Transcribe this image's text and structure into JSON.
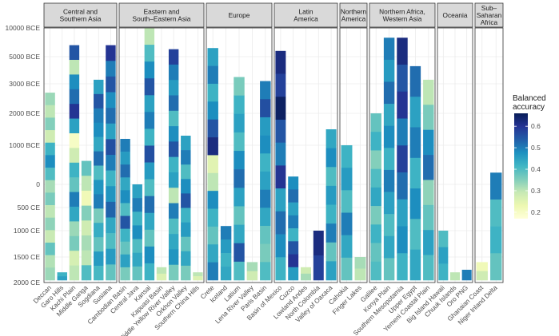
{
  "chart_data": {
    "type": "heatmap",
    "ylabel": "",
    "xlabel": "",
    "y_ticks": [
      "10000 BCE",
      "5000 BCE",
      "3000 BCE",
      "2000 BCE",
      "1000 BCE",
      "0",
      "500 CE",
      "1000 CE",
      "1500 CE",
      "2000 CE"
    ],
    "legend": {
      "title": [
        "Balanced",
        "accuracy"
      ],
      "ticks": [
        0.2,
        0.3,
        0.4,
        0.5,
        0.6
      ],
      "range": [
        0.17,
        0.66
      ],
      "placement": "right"
    },
    "colors": [
      "#ffffd9",
      "#edf8b1",
      "#c7e9b4",
      "#7fcdbb",
      "#41b6c4",
      "#1d91c0",
      "#225ea8",
      "#253494",
      "#081d58"
    ],
    "panels": [
      {
        "title": [
          "Central and",
          "Southern Asia"
        ],
        "regions": [
          "Deccan",
          "Garo Hills",
          "Kachi Plain",
          "Middle Ganga",
          "Sogdiana",
          "Susiana"
        ],
        "columns": [
          {
            "start": "2700 BCE",
            "values": [
              0.33,
              0.3,
              0.35,
              0.28,
              0.42,
              0.48,
              0.4,
              0.32,
              0.36,
              0.3,
              0.34,
              0.29,
              0.38,
              0.31,
              0.33
            ]
          },
          {
            "start": "1800 CE",
            "values": [
              0.42,
              0.45
            ]
          },
          {
            "start": "7000 BCE",
            "values": [
              0.55,
              0.3,
              0.48,
              0.52,
              0.6,
              0.45,
              0.2,
              0.28,
              0.42,
              0.38,
              0.5,
              0.44,
              0.33,
              0.36,
              0.27,
              0.3
            ]
          },
          {
            "start": "600 BCE",
            "values": [
              0.38,
              0.3,
              0.22,
              0.35,
              0.28,
              0.32,
              0.3,
              0.4
            ]
          },
          {
            "start": "3300 BCE",
            "values": [
              0.45,
              0.55,
              0.5,
              0.48,
              0.44,
              0.52,
              0.4,
              0.47,
              0.5,
              0.36,
              0.43,
              0.38,
              0.46,
              0.41
            ]
          },
          {
            "start": "7000 BCE",
            "values": [
              0.6,
              0.5,
              0.55,
              0.48,
              0.52,
              0.45,
              0.56,
              0.5,
              0.42,
              0.47,
              0.53,
              0.44,
              0.4,
              0.46,
              0.38
            ]
          }
        ]
      },
      {
        "title": [
          "Eastern and",
          "South–Eastern Asia"
        ],
        "regions": [
          "Cambodian Basin",
          "Central Java",
          "Kansai",
          "Kapuasi Basin",
          "Middle Yellow River Valley",
          "Orkhon Valley",
          "Southern China Hills"
        ],
        "columns": [
          {
            "start": "1200 BCE",
            "values": [
              0.5,
              0.46,
              0.52,
              0.44,
              0.48,
              0.4,
              0.55,
              0.42,
              0.38,
              0.45,
              0.36
            ]
          },
          {
            "start": "0",
            "values": [
              0.45,
              0.5,
              0.42,
              0.48,
              0.4,
              0.44,
              0.38
            ]
          },
          {
            "start": "10000 BCE",
            "values": [
              0.3,
              0.4,
              0.48,
              0.55,
              0.45,
              0.5,
              0.42,
              0.56,
              0.46,
              0.4,
              0.52,
              0.44,
              0.38,
              0.48,
              0.42
            ]
          },
          {
            "start": "1700 CE",
            "values": [
              0.3,
              0.26
            ]
          },
          {
            "start": "6300 BCE",
            "values": [
              0.58,
              0.5,
              0.46,
              0.52,
              0.4,
              0.48,
              0.55,
              0.42,
              0.45,
              0.3,
              0.5,
              0.4,
              0.44,
              0.47,
              0.36
            ]
          },
          {
            "start": "1300 BCE",
            "values": [
              0.45,
              0.5,
              0.4,
              0.48,
              0.55,
              0.42,
              0.46,
              0.38,
              0.44,
              0.36
            ]
          },
          {
            "start": "1800 CE",
            "values": [
              0.3,
              0.26
            ]
          }
        ]
      },
      {
        "title": [
          "Europe"
        ],
        "regions": [
          "Crete",
          "Iceland",
          "Latium",
          "Lena River Valley",
          "Paris Basin"
        ],
        "columns": [
          {
            "start": "6500 BCE",
            "values": [
              0.45,
              0.5,
              0.42,
              0.48,
              0.55,
              0.62,
              0.25,
              0.3,
              0.48,
              0.42,
              0.38,
              0.44,
              0.5
            ]
          },
          {
            "start": "900 CE",
            "values": [
              0.5,
              0.46,
              0.42,
              0.44
            ]
          },
          {
            "start": "3500 BCE",
            "values": [
              0.36,
              0.42,
              0.45,
              0.4,
              0.48,
              0.52,
              0.45,
              0.38,
              0.44,
              0.55,
              0.4
            ]
          },
          {
            "start": "1600 CE",
            "values": [
              0.32,
              0.28
            ]
          },
          {
            "start": "3200 BCE",
            "values": [
              0.5,
              0.56,
              0.46,
              0.48,
              0.42,
              0.45,
              0.5,
              0.44,
              0.38,
              0.36,
              0.4
            ]
          }
        ]
      },
      {
        "title": [
          "Latin",
          "America"
        ],
        "regions": [
          "Basin of Mexico",
          "Cuzco",
          "Lowland Andes",
          "North Colombia",
          "Valley of Oaxaca"
        ],
        "columns": [
          {
            "start": "6000 BCE",
            "values": [
              0.62,
              0.58,
              0.65,
              0.55,
              0.5,
              0.6,
              0.45,
              0.52,
              0.48,
              0.42
            ]
          },
          {
            "start": "200 BCE",
            "values": [
              0.48,
              0.52,
              0.45,
              0.5,
              0.42,
              0.55,
              0.6,
              0.46
            ]
          },
          {
            "start": "1700 CE",
            "values": [
              0.28,
              0.32
            ]
          },
          {
            "start": "1000 CE",
            "values": [
              0.62,
              0.58
            ]
          },
          {
            "start": "1500 BCE",
            "values": [
              0.44,
              0.48,
              0.4,
              0.46,
              0.42,
              0.5,
              0.38,
              0.45
            ]
          }
        ]
      },
      {
        "title": [
          "Northern",
          "America"
        ],
        "regions": [
          "Cahokia",
          "Finger Lakes"
        ],
        "columns": [
          {
            "start": "1000 BCE",
            "values": [
              0.42,
              0.46,
              0.4,
              0.5,
              0.44,
              0.38
            ]
          },
          {
            "start": "1500 CE",
            "values": [
              0.32,
              0.3
            ]
          }
        ]
      },
      {
        "title": [
          "Northern Africa,",
          "Western Asia"
        ],
        "regions": [
          "Galilee",
          "Konya Plain",
          "Southern Mesopotamia",
          "Upper Egypt",
          "Yemeni Coastal Plain"
        ],
        "columns": [
          {
            "start": "2000 BCE",
            "values": [
              0.38,
              0.42,
              0.35,
              0.4,
              0.44,
              0.36,
              0.42,
              0.38,
              0.4
            ]
          },
          {
            "start": "8300 BCE",
            "values": [
              0.5,
              0.46,
              0.52,
              0.44,
              0.48,
              0.42,
              0.5,
              0.45,
              0.4,
              0.44,
              0.38
            ]
          },
          {
            "start": "8300 BCE",
            "values": [
              0.62,
              0.55,
              0.6,
              0.5,
              0.58,
              0.52,
              0.45,
              0.48,
              0.42
            ]
          },
          {
            "start": "4300 BCE",
            "values": [
              0.52,
              0.45,
              0.5,
              0.42,
              0.48,
              0.4,
              0.44
            ]
          },
          {
            "start": "3300 BCE",
            "values": [
              0.3,
              0.36,
              0.48,
              0.52,
              0.34,
              0.38,
              0.45,
              0.4
            ]
          }
        ]
      },
      {
        "title": [
          "Oceania"
        ],
        "regions": [
          "Big Island Hawaii",
          "Chuuk Islands",
          "Oro PNG"
        ],
        "columns": [
          {
            "start": "1000 CE",
            "values": [
              0.4,
              0.45,
              0.42
            ]
          },
          {
            "start": "1800 CE",
            "values": [
              0.3
            ]
          },
          {
            "start": "1750 CE",
            "values": [
              0.5
            ]
          }
        ]
      },
      {
        "title": [
          "Sub–",
          "Saharan",
          "Africa"
        ],
        "regions": [
          "Ghanaian Coast",
          "Niger Inland Delta"
        ],
        "columns": [
          {
            "start": "1600 CE",
            "values": [
              0.22,
              0.28
            ]
          },
          {
            "start": "300 BCE",
            "values": [
              0.5,
              0.4,
              0.42,
              0.38
            ]
          }
        ]
      }
    ]
  }
}
